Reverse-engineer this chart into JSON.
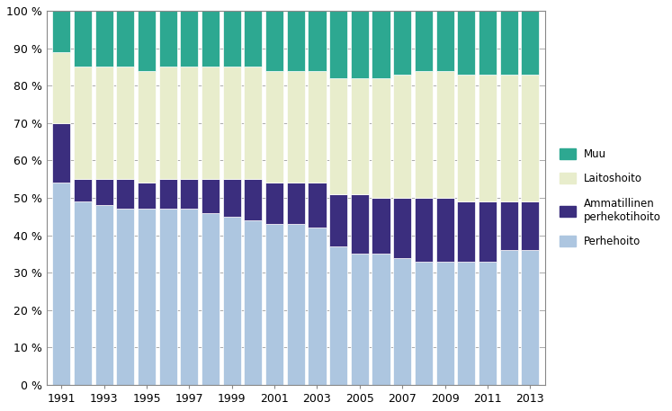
{
  "years": [
    1991,
    1992,
    1993,
    1994,
    1995,
    1996,
    1997,
    1998,
    1999,
    2000,
    2001,
    2002,
    2003,
    2004,
    2005,
    2006,
    2007,
    2008,
    2009,
    2010,
    2011,
    2012,
    2013
  ],
  "perhehoito": [
    54,
    49,
    48,
    47,
    47,
    47,
    47,
    46,
    45,
    44,
    43,
    43,
    42,
    37,
    35,
    35,
    34,
    33,
    33,
    33,
    33,
    36,
    36
  ],
  "ammatillinen": [
    16,
    6,
    7,
    8,
    7,
    8,
    8,
    9,
    10,
    11,
    11,
    11,
    12,
    14,
    16,
    15,
    16,
    17,
    17,
    16,
    16,
    13,
    13
  ],
  "laitoshoito": [
    19,
    30,
    30,
    30,
    30,
    30,
    30,
    30,
    30,
    30,
    30,
    30,
    30,
    31,
    31,
    32,
    33,
    34,
    34,
    34,
    34,
    34,
    34
  ],
  "muu": [
    11,
    15,
    15,
    15,
    16,
    15,
    15,
    15,
    15,
    15,
    16,
    16,
    16,
    18,
    18,
    18,
    17,
    16,
    16,
    17,
    17,
    17,
    17
  ],
  "colors": {
    "perhehoito": "#adc6e0",
    "ammatillinen": "#3b2e7e",
    "laitoshoito": "#e8edcc",
    "muu": "#2da891"
  },
  "legend_labels": [
    "Muu",
    "Laitoshoito",
    "Ammatillinen\nperhekotihoito",
    "Perhehoito"
  ],
  "yticks": [
    0,
    10,
    20,
    30,
    40,
    50,
    60,
    70,
    80,
    90,
    100
  ],
  "ytick_labels": [
    "0 %",
    "10 %",
    "20 %",
    "30 %",
    "40 %",
    "50 %",
    "60 %",
    "70 %",
    "80 %",
    "90 %",
    "100 %"
  ],
  "xtick_years": [
    1991,
    1993,
    1995,
    1997,
    1999,
    2001,
    2003,
    2005,
    2007,
    2009,
    2011,
    2013
  ],
  "ylim": [
    0,
    100
  ],
  "grid_color": "#888888",
  "background_color": "#ffffff",
  "bar_edge_color": "#ffffff",
  "bar_linewidth": 0.5,
  "bar_width": 0.85
}
